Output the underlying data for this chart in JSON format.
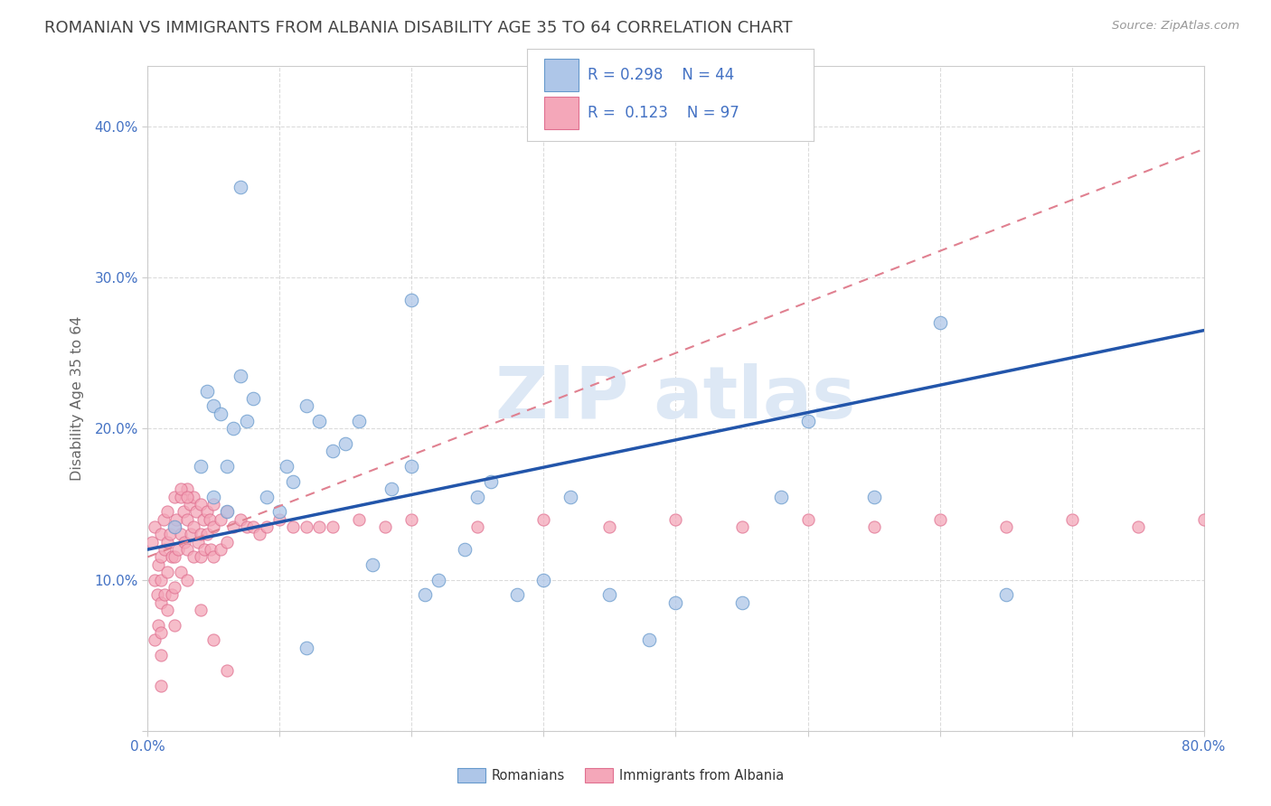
{
  "title": "ROMANIAN VS IMMIGRANTS FROM ALBANIA DISABILITY AGE 35 TO 64 CORRELATION CHART",
  "source": "Source: ZipAtlas.com",
  "ylabel": "Disability Age 35 to 64",
  "x_min": 0.0,
  "x_max": 0.8,
  "y_min": 0.0,
  "y_max": 0.44,
  "background_color": "#ffffff",
  "plot_bg_color": "#ffffff",
  "grid_color": "#cccccc",
  "title_color": "#444444",
  "title_fontsize": 13,
  "axis_label_color": "#666666",
  "tick_label_color": "#4472c4",
  "romanian_color": "#aec6e8",
  "albanian_color": "#f4a7b9",
  "romanian_edge_color": "#6699cc",
  "albanian_edge_color": "#e07090",
  "trend_romanian_color": "#2255aa",
  "trend_albanian_color": "#e08090",
  "watermark_color": "#dde8f5",
  "rom_trend_x0": 0.0,
  "rom_trend_y0": 0.12,
  "rom_trend_x1": 0.8,
  "rom_trend_y1": 0.265,
  "alb_trend_x0": 0.0,
  "alb_trend_y0": 0.115,
  "alb_trend_x1": 0.8,
  "alb_trend_y1": 0.385,
  "romanian_x": [
    0.02,
    0.04,
    0.045,
    0.05,
    0.055,
    0.06,
    0.065,
    0.07,
    0.075,
    0.08,
    0.09,
    0.1,
    0.105,
    0.11,
    0.12,
    0.13,
    0.14,
    0.15,
    0.16,
    0.17,
    0.185,
    0.2,
    0.21,
    0.22,
    0.24,
    0.26,
    0.28,
    0.3,
    0.32,
    0.35,
    0.38,
    0.4,
    0.45,
    0.5,
    0.55,
    0.6,
    0.05,
    0.06,
    0.07,
    0.12,
    0.25,
    0.2,
    0.48,
    0.65
  ],
  "romanian_y": [
    0.135,
    0.175,
    0.225,
    0.215,
    0.21,
    0.175,
    0.2,
    0.235,
    0.205,
    0.22,
    0.155,
    0.145,
    0.175,
    0.165,
    0.215,
    0.205,
    0.185,
    0.19,
    0.205,
    0.11,
    0.16,
    0.175,
    0.09,
    0.1,
    0.12,
    0.165,
    0.09,
    0.1,
    0.155,
    0.09,
    0.06,
    0.085,
    0.085,
    0.205,
    0.155,
    0.27,
    0.155,
    0.145,
    0.36,
    0.055,
    0.155,
    0.285,
    0.155,
    0.09
  ],
  "albanian_x": [
    0.003,
    0.005,
    0.005,
    0.005,
    0.007,
    0.008,
    0.008,
    0.01,
    0.01,
    0.01,
    0.01,
    0.01,
    0.01,
    0.01,
    0.012,
    0.013,
    0.013,
    0.015,
    0.015,
    0.015,
    0.015,
    0.017,
    0.018,
    0.018,
    0.02,
    0.02,
    0.02,
    0.02,
    0.02,
    0.022,
    0.023,
    0.025,
    0.025,
    0.025,
    0.027,
    0.028,
    0.03,
    0.03,
    0.03,
    0.03,
    0.032,
    0.033,
    0.035,
    0.035,
    0.035,
    0.037,
    0.038,
    0.04,
    0.04,
    0.04,
    0.042,
    0.043,
    0.045,
    0.045,
    0.047,
    0.048,
    0.05,
    0.05,
    0.05,
    0.055,
    0.055,
    0.06,
    0.06,
    0.065,
    0.07,
    0.075,
    0.08,
    0.085,
    0.09,
    0.1,
    0.11,
    0.12,
    0.13,
    0.14,
    0.16,
    0.18,
    0.2,
    0.25,
    0.3,
    0.35,
    0.4,
    0.45,
    0.5,
    0.55,
    0.6,
    0.65,
    0.7,
    0.75,
    0.8,
    0.025,
    0.03,
    0.04,
    0.05,
    0.06
  ],
  "albanian_y": [
    0.125,
    0.135,
    0.1,
    0.06,
    0.09,
    0.11,
    0.07,
    0.13,
    0.115,
    0.1,
    0.085,
    0.065,
    0.05,
    0.03,
    0.14,
    0.12,
    0.09,
    0.145,
    0.125,
    0.105,
    0.08,
    0.13,
    0.115,
    0.09,
    0.155,
    0.135,
    0.115,
    0.095,
    0.07,
    0.14,
    0.12,
    0.155,
    0.13,
    0.105,
    0.145,
    0.125,
    0.16,
    0.14,
    0.12,
    0.1,
    0.15,
    0.13,
    0.155,
    0.135,
    0.115,
    0.145,
    0.125,
    0.15,
    0.13,
    0.115,
    0.14,
    0.12,
    0.145,
    0.13,
    0.14,
    0.12,
    0.15,
    0.135,
    0.115,
    0.14,
    0.12,
    0.145,
    0.125,
    0.135,
    0.14,
    0.135,
    0.135,
    0.13,
    0.135,
    0.14,
    0.135,
    0.135,
    0.135,
    0.135,
    0.14,
    0.135,
    0.14,
    0.135,
    0.14,
    0.135,
    0.14,
    0.135,
    0.14,
    0.135,
    0.14,
    0.135,
    0.14,
    0.135,
    0.14,
    0.16,
    0.155,
    0.08,
    0.06,
    0.04
  ]
}
